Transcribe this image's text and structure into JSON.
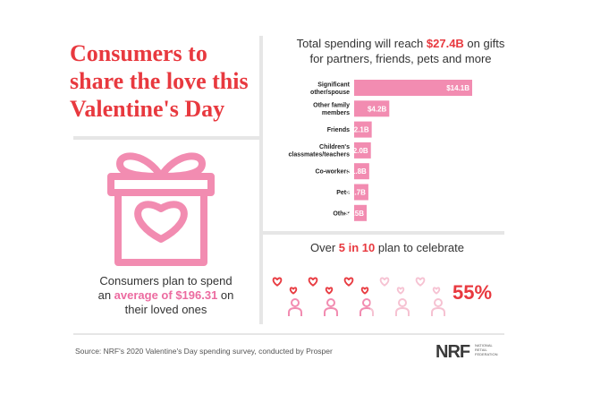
{
  "headline": {
    "line1": "Consumers to",
    "line2": "share the love this",
    "line3": "Valentine's Day"
  },
  "chart_title": {
    "prefix": "Total spending will reach ",
    "highlight": "$27.4B",
    "suffix": " on gifts",
    "line2": "for partners, friends, pets and more"
  },
  "chart_data": {
    "type": "bar",
    "orientation": "horizontal",
    "title": "Total spending will reach $27.4B on gifts for partners, friends, pets and more",
    "categories": [
      [
        "Significant",
        "other/spouse"
      ],
      [
        "Other family",
        "members"
      ],
      [
        "Friends"
      ],
      [
        "Children's",
        "classmates/teachers"
      ],
      [
        "Co-workers"
      ],
      [
        "Pets"
      ],
      [
        "Other"
      ]
    ],
    "values": [
      14.1,
      4.2,
      2.1,
      2.0,
      1.8,
      1.7,
      1.5
    ],
    "value_labels": [
      "$14.1B",
      "$4.2B",
      "$2.1B",
      "$2.0B",
      "$1.8B",
      "$1.7B",
      "$1.5B"
    ],
    "unit": "billion USD",
    "xlim": [
      0,
      14.1
    ],
    "bar_color": "#f28cb1"
  },
  "average_stat": {
    "line1": "Consumers plan to spend",
    "prefix": "an ",
    "highlight": "average of $196.31",
    "suffix": " on",
    "line3": "their loved ones"
  },
  "celebrate": {
    "prefix": "Over ",
    "highlight": "5 in 10",
    "suffix": " plan to celebrate",
    "percent": "55%",
    "people_total": 5,
    "people_highlighted": 2.75
  },
  "source": "Source: NRF's 2020 Valentine's Day spending survey, conducted by Prosper",
  "logo": {
    "text": "NRF",
    "sub1": "NATIONAL",
    "sub2": "RETAIL",
    "sub3": "FEDERATION"
  },
  "colors": {
    "accent_red": "#e8393f",
    "pink": "#f28cb1",
    "light_pink": "#f6c2d2",
    "divider": "#e6e6e6"
  }
}
